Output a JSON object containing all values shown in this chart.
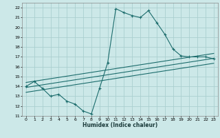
{
  "xlabel": "Humidex (Indice chaleur)",
  "bg_color": "#cce8e8",
  "grid_color": "#aacfcf",
  "line_color": "#1a6b6b",
  "xlim": [
    -0.5,
    23.5
  ],
  "ylim": [
    11,
    22.5
  ],
  "xticks": [
    0,
    1,
    2,
    3,
    4,
    5,
    6,
    7,
    8,
    9,
    10,
    11,
    12,
    13,
    14,
    15,
    16,
    17,
    18,
    19,
    20,
    21,
    22,
    23
  ],
  "yticks": [
    11,
    12,
    13,
    14,
    15,
    16,
    17,
    18,
    19,
    20,
    21,
    22
  ],
  "main_line_x": [
    0,
    1,
    2,
    3,
    4,
    5,
    6,
    7,
    8,
    9,
    10,
    11,
    12,
    13,
    14,
    15,
    16,
    17,
    18,
    19,
    20,
    21,
    22,
    23
  ],
  "main_line_y": [
    14.0,
    14.5,
    13.8,
    13.0,
    13.2,
    12.5,
    12.2,
    11.5,
    11.2,
    13.8,
    16.4,
    21.9,
    21.5,
    21.2,
    21.0,
    21.7,
    20.5,
    19.3,
    17.8,
    17.1,
    17.0,
    17.0,
    17.0,
    16.8
  ],
  "line2_x": [
    0,
    23
  ],
  "line2_y": [
    13.9,
    16.85
  ],
  "line3_x": [
    0,
    23
  ],
  "line3_y": [
    13.4,
    16.35
  ],
  "line4_x": [
    0,
    23
  ],
  "line4_y": [
    14.4,
    17.35
  ]
}
